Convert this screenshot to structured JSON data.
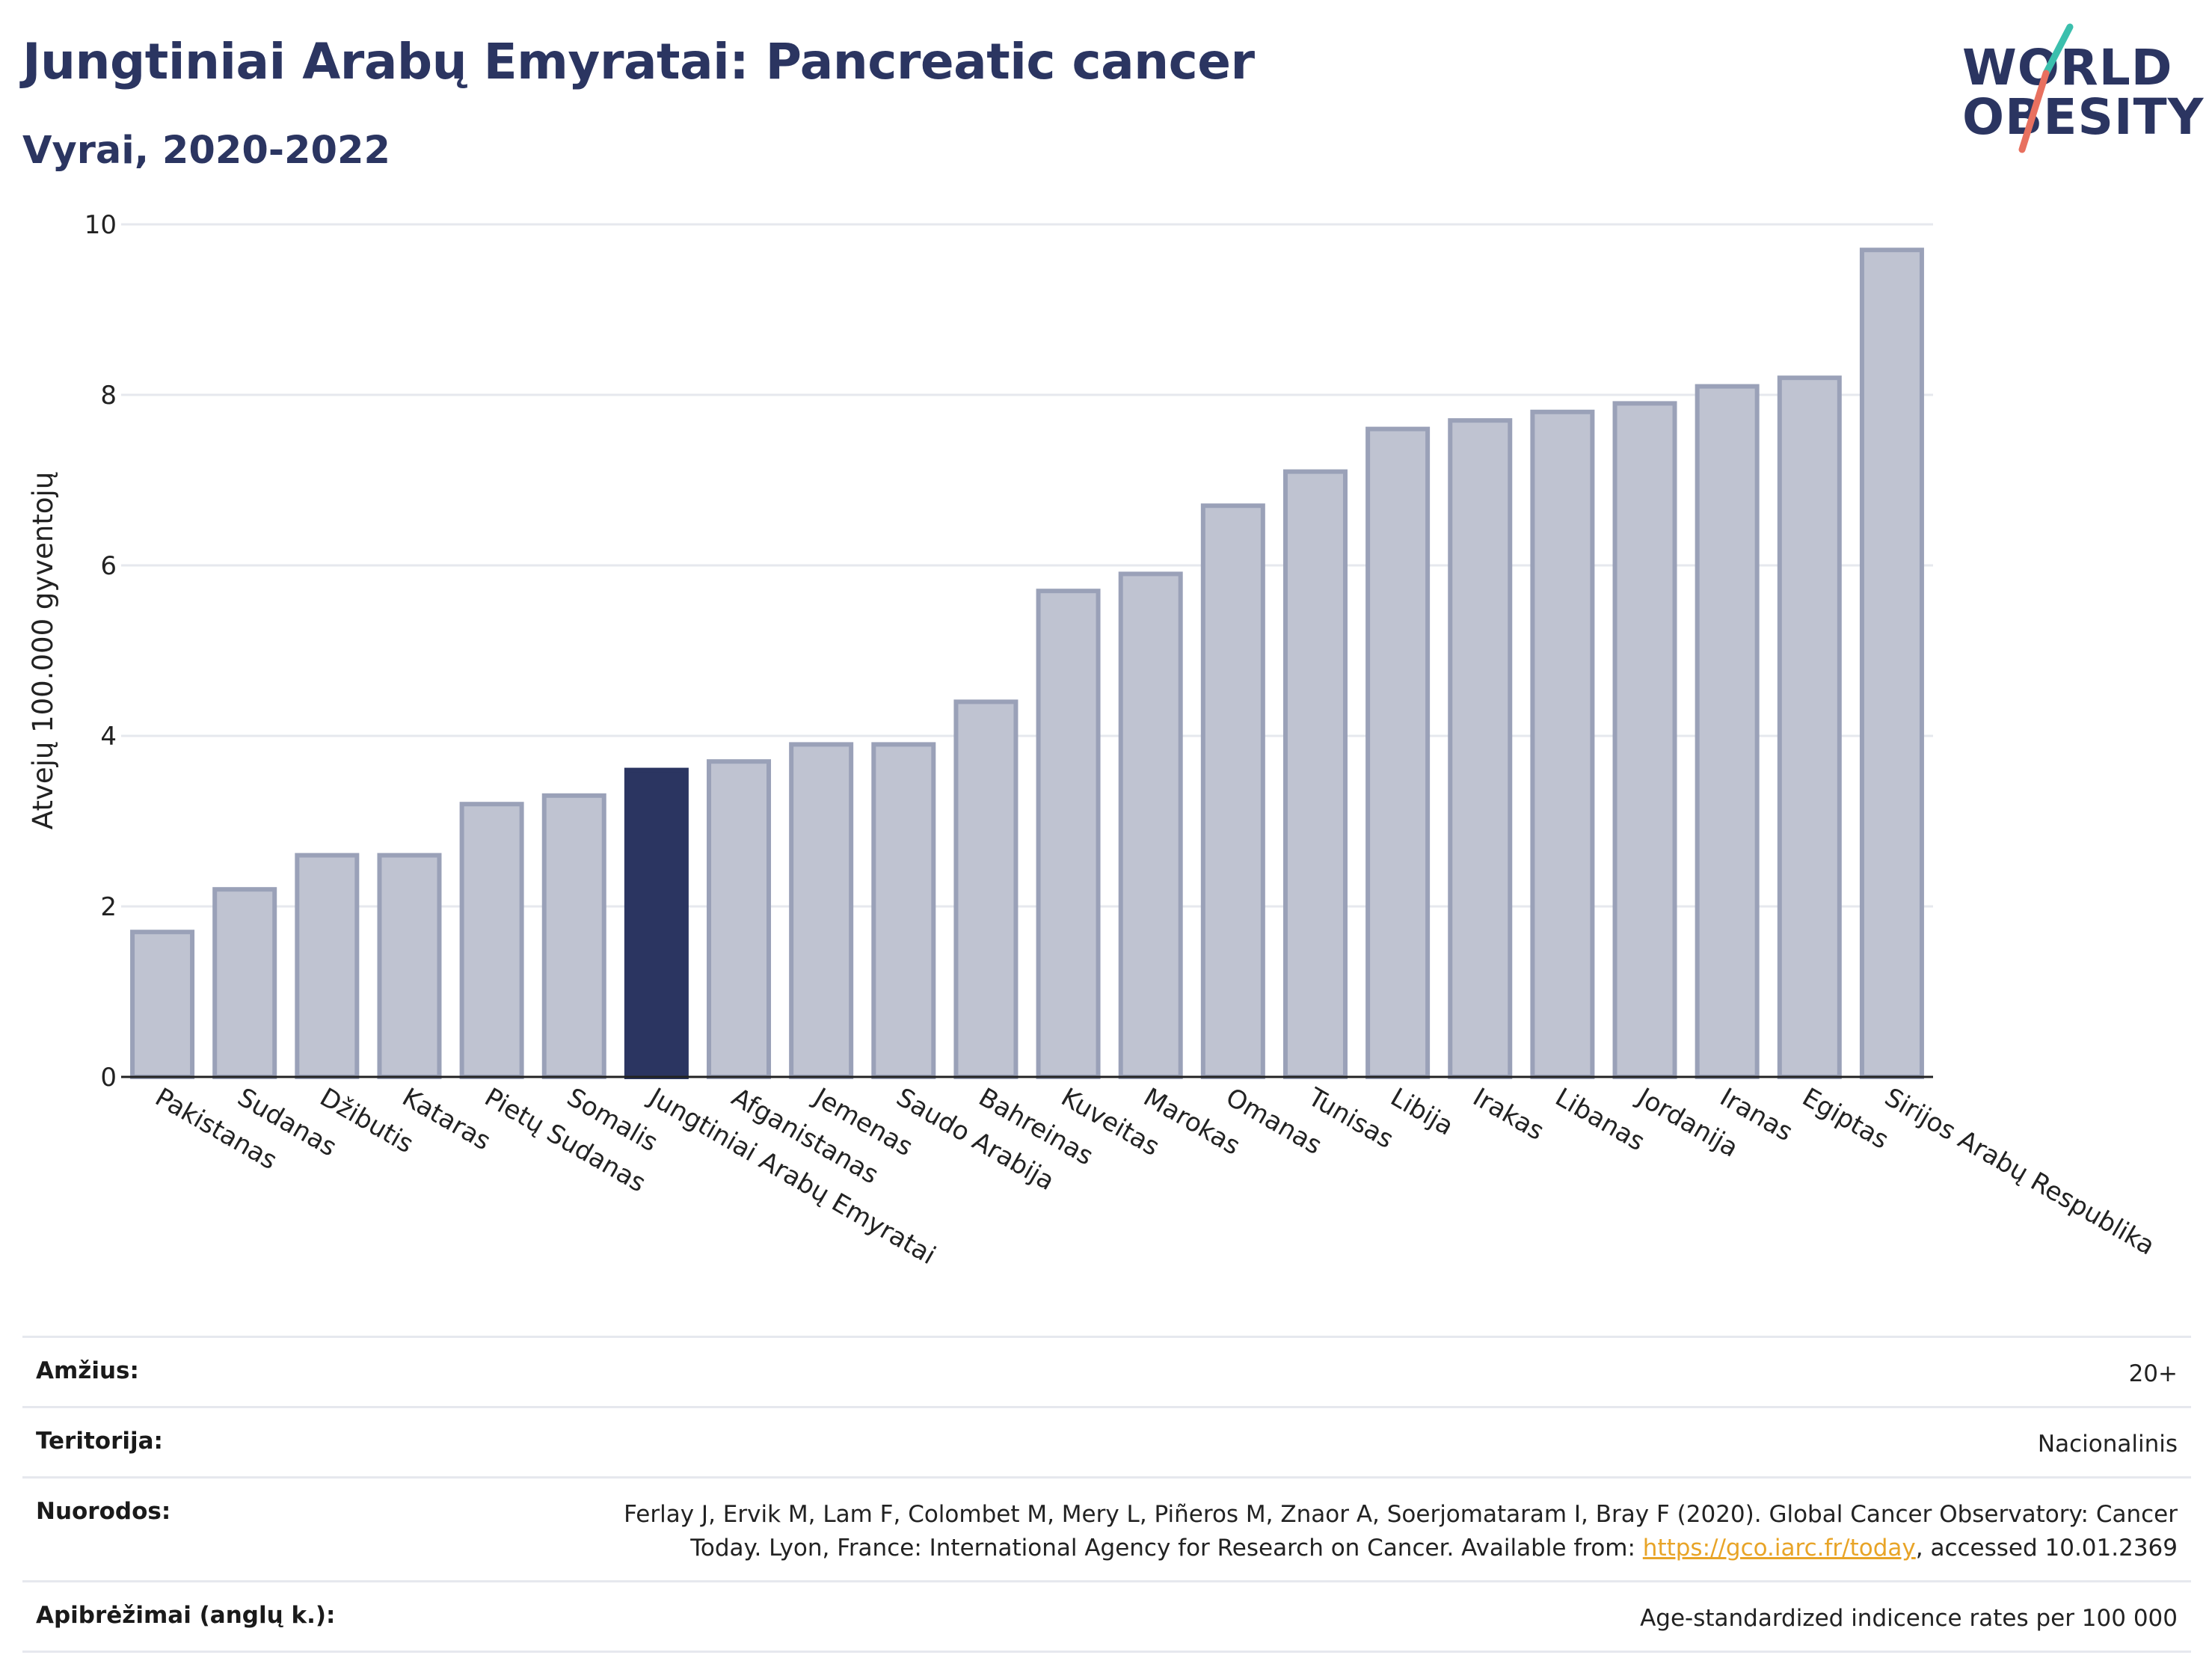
{
  "header": {
    "title": "Jungtiniai Arabų Emyratai: Pancreatic cancer",
    "subtitle": "Vyrai, 2020-2022"
  },
  "logo": {
    "line1": "WORLD",
    "line2": "OBESITY",
    "accent_colors": [
      "#3bbfad",
      "#e8705f"
    ]
  },
  "colors": {
    "highlight": "#2b3561",
    "bar_fill": "#bfc3d1",
    "bar_stroke": "#9aa1b8",
    "grid": "#e6e8ee"
  },
  "chart_data": {
    "type": "bar",
    "ylabel": "Atvejų 100.000 gyventojų",
    "xlabel": "",
    "ylim": [
      0,
      10
    ],
    "yticks": [
      0,
      2,
      4,
      6,
      8,
      10
    ],
    "grid": true,
    "highlight_category": "Jungtiniai Arabų Emyratai",
    "categories": [
      "Pakistanas",
      "Sudanas",
      "Džibutis",
      "Kataras",
      "Pietų Sudanas",
      "Somalis",
      "Jungtiniai Arabų Emyratai",
      "Afganistanas",
      "Jemenas",
      "Saudo Arabija",
      "Bahreinas",
      "Kuveitas",
      "Marokas",
      "Omanas",
      "Tunisas",
      "Libija",
      "Irakas",
      "Libanas",
      "Jordanija",
      "Iranas",
      "Egiptas",
      "Sirijos Arabų Respublika"
    ],
    "values": [
      1.7,
      2.2,
      2.6,
      2.6,
      3.2,
      3.3,
      3.6,
      3.7,
      3.9,
      3.9,
      4.4,
      5.7,
      5.9,
      6.7,
      7.1,
      7.6,
      7.7,
      7.8,
      7.9,
      8.1,
      8.2,
      9.7
    ]
  },
  "footer": {
    "age_label": "Amžius:",
    "age_value": "20+",
    "territory_label": "Teritorija:",
    "territory_value": "Nacionalinis",
    "refs_label": "Nuorodos:",
    "refs_text_1": "Ferlay J, Ervik M, Lam F, Colombet M, Mery L, Piñeros M, Znaor A, Soerjomataram I, Bray F (2020). Global Cancer Observatory: Cancer Today. Lyon, France: International Agency for Research on Cancer. Available from: ",
    "refs_link": "https://gco.iarc.fr/today",
    "refs_text_2": ", accessed 10.01.2369",
    "definitions_label": "Apibrėžimai (anglų k.):",
    "definitions_value": "Age-standardized indicence rates per 100 000"
  }
}
